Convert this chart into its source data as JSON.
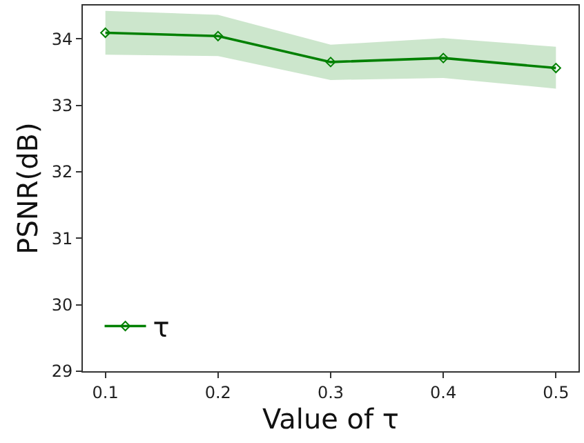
{
  "chart_data": {
    "type": "line",
    "xlabel": "Value of τ",
    "ylabel": "PSNR(dB)",
    "x": [
      0.1,
      0.2,
      0.3,
      0.4,
      0.5
    ],
    "series": [
      {
        "name": "τ",
        "color": "#008000",
        "values": [
          34.09,
          34.04,
          33.65,
          33.71,
          33.56
        ],
        "lower": [
          33.76,
          33.74,
          33.38,
          33.41,
          33.25
        ],
        "upper": [
          34.42,
          34.36,
          33.91,
          34.01,
          33.88
        ]
      }
    ],
    "xlim": [
      0.08,
      0.52
    ],
    "xticks": [
      0.1,
      0.2,
      0.3,
      0.4,
      0.5
    ],
    "ylim": [
      29,
      34.5
    ],
    "yticks": [
      29,
      30,
      31,
      32,
      33,
      34
    ],
    "legend": "bottom left",
    "marker": "diamond",
    "line_style": "solid"
  }
}
